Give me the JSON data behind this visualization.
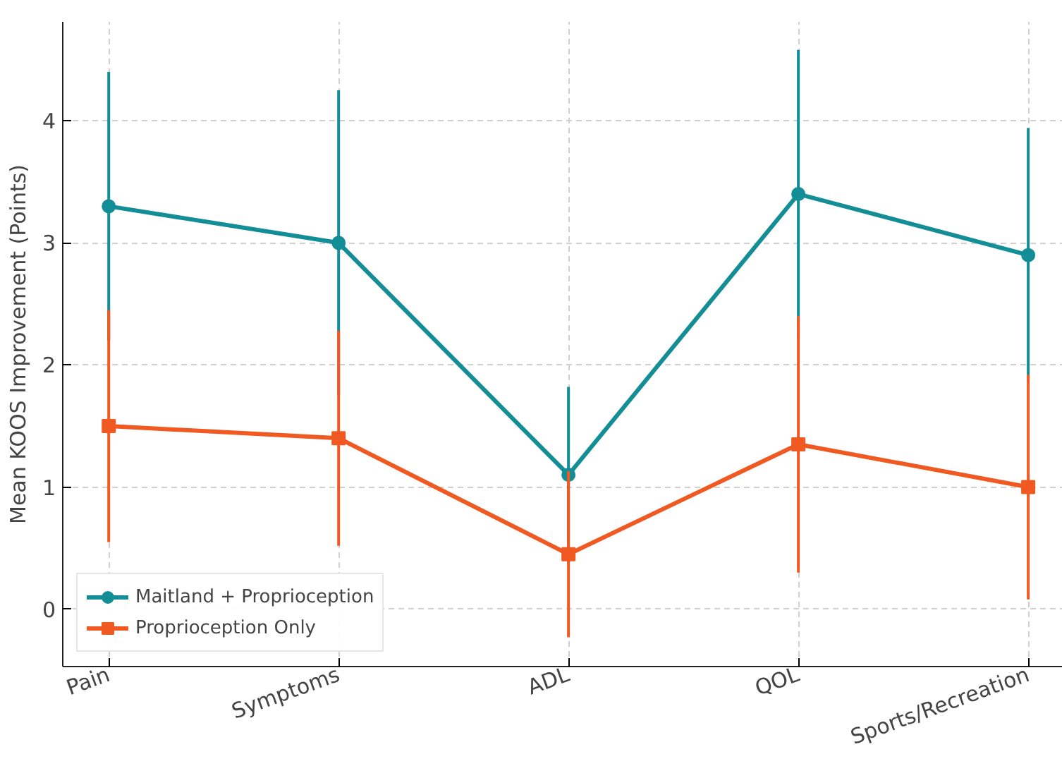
{
  "chart_data": {
    "type": "line",
    "ylabel": "Mean KOOS Improvement (Points)",
    "categories": [
      "Pain",
      "Symptoms",
      "ADL",
      "QOL",
      "Sports/Recreation"
    ],
    "series": [
      {
        "name": "Maitland + Proprioception",
        "color": "#138d96",
        "values": [
          3.3,
          3.0,
          1.1,
          3.4,
          2.9
        ],
        "errors": [
          1.1,
          1.25,
          0.72,
          1.18,
          1.04
        ],
        "marker": "circle"
      },
      {
        "name": "Proprioception Only",
        "color": "#f05a22",
        "values": [
          1.5,
          1.4,
          0.45,
          1.35,
          1.0
        ],
        "errors": [
          0.95,
          0.88,
          0.68,
          1.05,
          0.92
        ],
        "marker": "square"
      }
    ],
    "ylim": [
      -0.47,
      4.81
    ],
    "yticks": [
      0,
      1,
      2,
      3,
      4
    ],
    "grid": true,
    "legend": "bottom left"
  }
}
